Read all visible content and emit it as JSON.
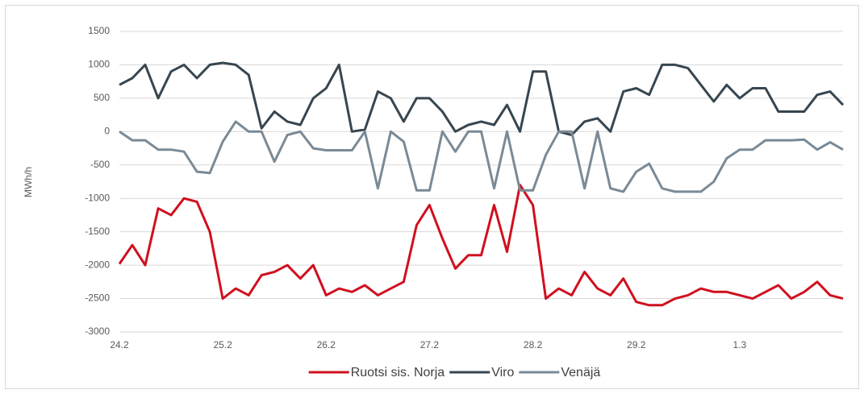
{
  "chart_data": {
    "type": "line",
    "y_label": "MWh/h",
    "categories": [
      "24.2",
      null,
      null,
      null,
      null,
      null,
      null,
      null,
      "25.2",
      null,
      null,
      null,
      null,
      null,
      null,
      null,
      "26.2",
      null,
      null,
      null,
      null,
      null,
      null,
      null,
      "27.2",
      null,
      null,
      null,
      null,
      null,
      null,
      null,
      "28.2",
      null,
      null,
      null,
      null,
      null,
      null,
      null,
      "29.2",
      null,
      null,
      null,
      null,
      null,
      null,
      null,
      "1.3",
      null,
      null,
      null,
      null,
      null,
      null,
      null,
      null
    ],
    "series": [
      {
        "name": "Ruotsi sis. Norja",
        "color": "#d0101e",
        "values": [
          -1980,
          -1700,
          -2000,
          -1150,
          -1250,
          -1000,
          -1050,
          -1500,
          -2500,
          -2350,
          -2450,
          -2150,
          -2100,
          -2000,
          -2200,
          -2000,
          -2450,
          -2350,
          -2400,
          -2300,
          -2450,
          -2350,
          -2250,
          -1400,
          -1100,
          -1600,
          -2050,
          -1850,
          -1850,
          -1100,
          -1800,
          -800,
          -1100,
          -2500,
          -2350,
          -2450,
          -2100,
          -2350,
          -2450,
          -2200,
          -2550,
          -2600,
          -2600,
          -2500,
          -2450,
          -2350,
          -2400,
          -2400,
          -2450,
          -2500,
          -2400,
          -2300,
          -2500,
          -2400,
          -2250,
          -2450,
          -2500
        ]
      },
      {
        "name": "Viro",
        "color": "#374650",
        "values": [
          700,
          800,
          1000,
          500,
          900,
          1000,
          800,
          1000,
          1030,
          1000,
          850,
          50,
          300,
          150,
          100,
          500,
          650,
          1000,
          0,
          30,
          600,
          500,
          150,
          500,
          500,
          300,
          0,
          100,
          150,
          100,
          400,
          0,
          900,
          900,
          0,
          -50,
          150,
          200,
          0,
          600,
          650,
          550,
          1000,
          1000,
          950,
          700,
          450,
          700,
          500,
          650,
          650,
          300,
          300,
          300,
          550,
          600,
          400
        ]
      },
      {
        "name": "Venäjä",
        "color": "#7a8a96",
        "values": [
          0,
          -130,
          -130,
          -270,
          -270,
          -300,
          -600,
          -620,
          -150,
          150,
          0,
          0,
          -450,
          -50,
          0,
          -250,
          -280,
          -280,
          -280,
          0,
          -850,
          0,
          -150,
          -880,
          -880,
          0,
          -300,
          0,
          0,
          -850,
          0,
          -880,
          -880,
          -350,
          0,
          0,
          -850,
          0,
          -850,
          -900,
          -600,
          -480,
          -850,
          -900,
          -900,
          -900,
          -750,
          -400,
          -270,
          -270,
          -130,
          -130,
          -130,
          -120,
          -270,
          -160,
          -270
        ]
      }
    ],
    "ylim": [
      -3000,
      1500
    ],
    "yticks": [
      -3000,
      -2500,
      -2000,
      -1500,
      -1000,
      -500,
      0,
      500,
      1000,
      1500
    ],
    "grid": true,
    "legend": "bottom"
  }
}
